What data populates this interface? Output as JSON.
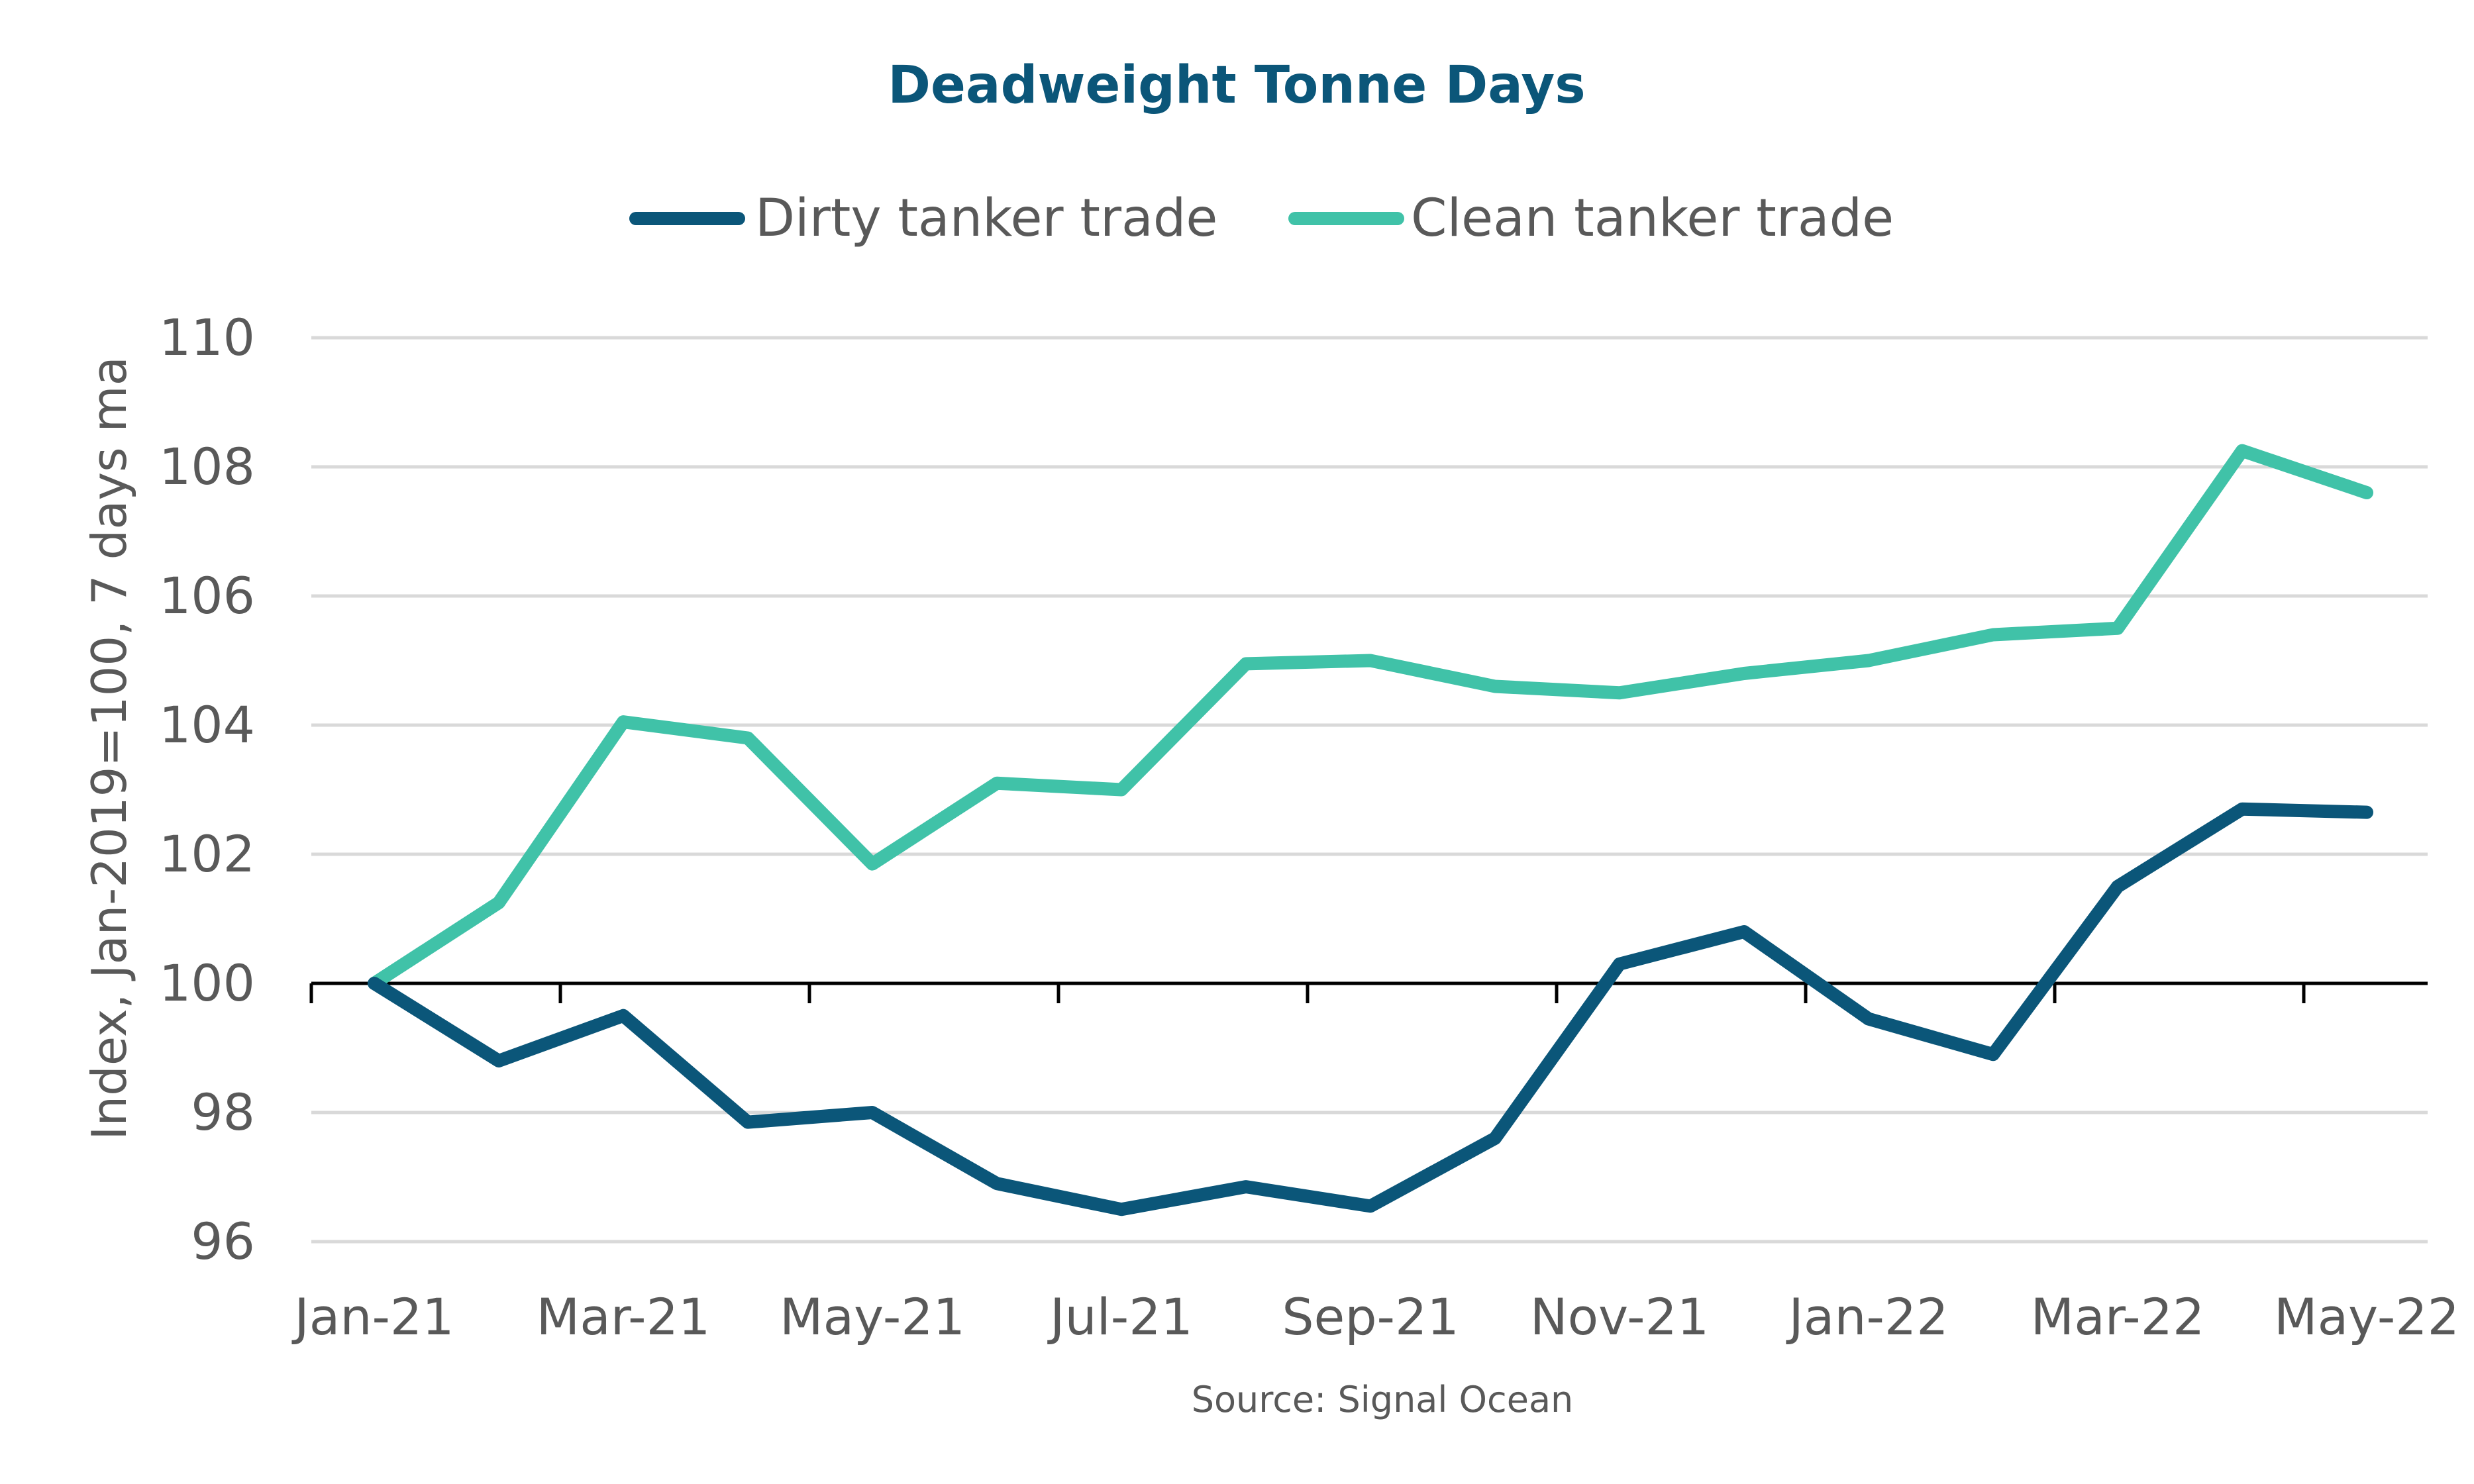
{
  "chart_data": {
    "type": "line",
    "title": "Deadweight Tonne Days",
    "ylabel": "Index, Jan-2019=100, 7 days ma",
    "source": "Source: Signal Ocean",
    "ylim": [
      96,
      110
    ],
    "yticks": [
      96,
      98,
      100,
      102,
      104,
      106,
      108,
      110
    ],
    "grid": true,
    "legend_position": "top",
    "x_tick_labels": [
      "Jan-21",
      "Mar-21",
      "May-21",
      "Jul-21",
      "Sep-21",
      "Nov-21",
      "Jan-22",
      "Mar-22",
      "May-22"
    ],
    "x": [
      "Jan-21",
      "Feb-21",
      "Mar-21",
      "Apr-21",
      "May-21",
      "Jun-21",
      "Jul-21",
      "Aug-21",
      "Sep-21",
      "Oct-21",
      "Nov-21",
      "Dec-21",
      "Jan-22",
      "Feb-22",
      "Mar-22",
      "Apr-22",
      "May-22"
    ],
    "series": [
      {
        "name": "Dirty tanker trade",
        "color": "#0b5679",
        "values": [
          100.0,
          98.8,
          99.5,
          97.85,
          98.0,
          96.9,
          96.5,
          96.85,
          96.55,
          97.6,
          100.3,
          100.8,
          99.45,
          98.9,
          101.5,
          102.7,
          102.65
        ]
      },
      {
        "name": "Clean tanker trade",
        "color": "#40c2a8",
        "values": [
          100.0,
          101.25,
          104.05,
          103.8,
          101.85,
          103.1,
          103.0,
          104.95,
          105.0,
          104.6,
          104.5,
          104.8,
          105.0,
          105.4,
          105.5,
          108.25,
          107.6
        ]
      }
    ]
  },
  "colors": {
    "title": "#0b5679",
    "text": "#595959",
    "grid": "#d9d9d9",
    "baseline": "#000000"
  }
}
